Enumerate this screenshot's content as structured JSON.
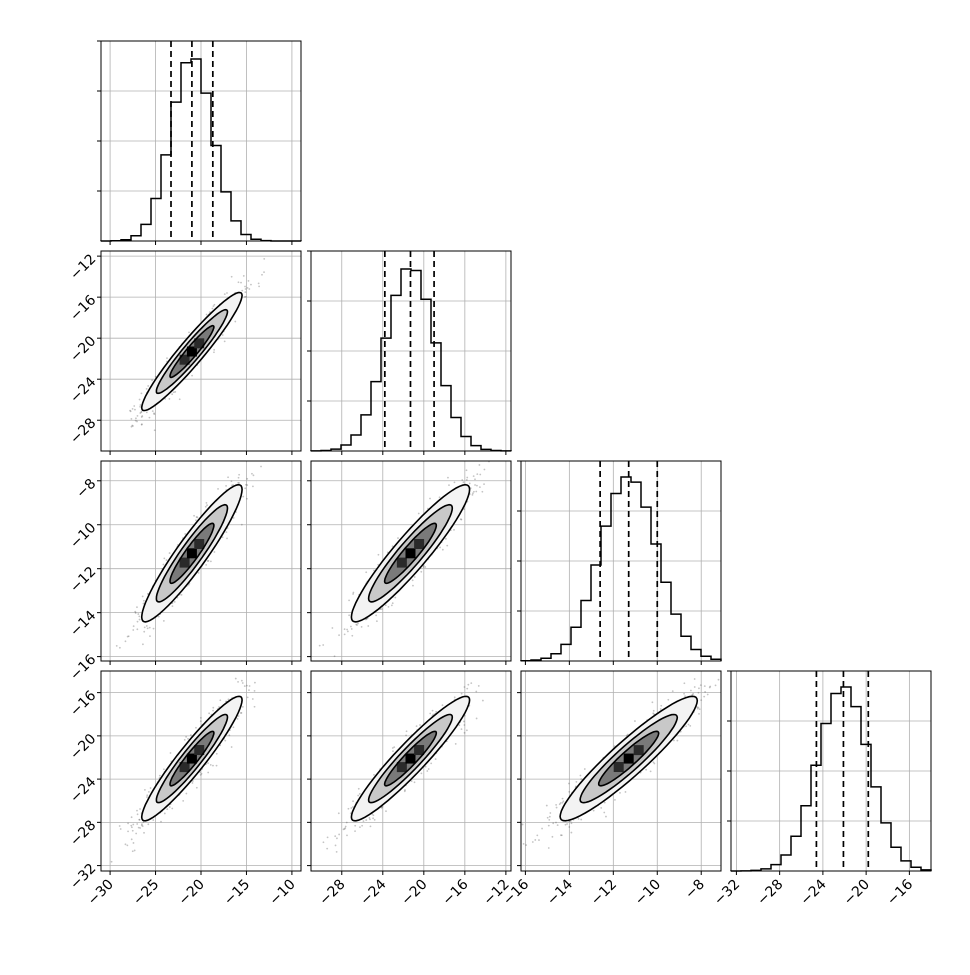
{
  "chart_data": {
    "type": "corner",
    "parameters": [
      {
        "range": [
          -31,
          -9
        ],
        "ticks": [
          -30,
          -25,
          -20,
          -15,
          -10
        ],
        "tick_labels": [
          "−30",
          "−25",
          "−20",
          "−15",
          "−10"
        ],
        "quantiles": [
          -23.3,
          -21.0,
          -18.7
        ],
        "hist_peak_fraction": 0.91,
        "hist_sigma": 2.3,
        "hist_mean": -21.0
      },
      {
        "range": [
          -31,
          -11.5
        ],
        "ticks": [
          -28,
          -24,
          -20,
          -16,
          -12
        ],
        "tick_labels": [
          "−28",
          "−24",
          "−20",
          "−16",
          "−12"
        ],
        "quantiles": [
          -23.8,
          -21.3,
          -19.0
        ],
        "hist_peak_fraction": 0.91,
        "hist_sigma": 2.4,
        "hist_mean": -21.3
      },
      {
        "range": [
          -16.2,
          -7.1
        ],
        "ticks": [
          -16,
          -14,
          -12,
          -10,
          -8
        ],
        "tick_labels": [
          "−16",
          "−14",
          "−12",
          "−10",
          "−8"
        ],
        "quantiles": [
          -12.6,
          -11.3,
          -10.0
        ],
        "hist_peak_fraction": 0.92,
        "hist_sigma": 1.3,
        "hist_mean": -11.3
      },
      {
        "range": [
          -32.5,
          -14
        ],
        "ticks": [
          -32,
          -28,
          -24,
          -20,
          -16
        ],
        "tick_labels": [
          "−32",
          "−28",
          "−24",
          "−20",
          "−16"
        ],
        "quantiles": [
          -24.6,
          -22.1,
          -19.8
        ],
        "hist_peak_fraction": 0.92,
        "hist_sigma": 2.4,
        "hist_mean": -22.1
      }
    ],
    "pairs": [
      {
        "x": 0,
        "y": 1,
        "corr": 0.95,
        "peak": [
          -21.0,
          -21.3
        ]
      },
      {
        "x": 0,
        "y": 2,
        "corr": 0.93,
        "peak": [
          -21.0,
          -11.3
        ]
      },
      {
        "x": 1,
        "y": 2,
        "corr": 0.93,
        "peak": [
          -21.3,
          -11.3
        ]
      },
      {
        "x": 0,
        "y": 3,
        "corr": 0.94,
        "peak": [
          -21.0,
          -22.1
        ]
      },
      {
        "x": 1,
        "y": 3,
        "corr": 0.94,
        "peak": [
          -21.3,
          -22.1
        ]
      },
      {
        "x": 2,
        "y": 3,
        "corr": 0.93,
        "peak": [
          -11.3,
          -22.1
        ]
      }
    ],
    "grid": true,
    "colors": {
      "line": "#000000",
      "grid": "#b0b0b0",
      "points": "#555555"
    }
  }
}
